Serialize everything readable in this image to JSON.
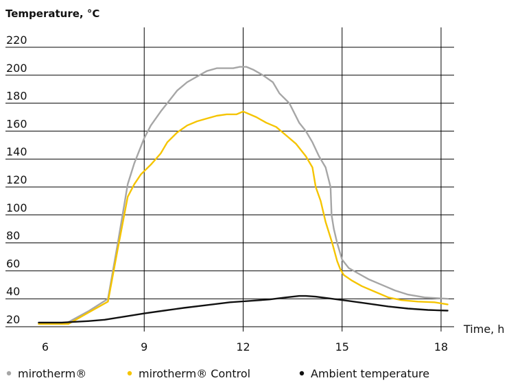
{
  "chart_data": {
    "type": "line",
    "ylabel": "Temperature, °C",
    "xlabel": "Time, h",
    "xlim": [
      5.8,
      18.3
    ],
    "ylim": [
      20,
      230
    ],
    "x_ticks": [
      "6",
      "9",
      "12",
      "15",
      "18"
    ],
    "x_tick_values": [
      6,
      9,
      12,
      15,
      18
    ],
    "y_ticks": [
      "20",
      "40",
      "60",
      "80",
      "100",
      "120",
      "140",
      "160",
      "180",
      "200",
      "220"
    ],
    "y_tick_values": [
      20,
      40,
      60,
      80,
      100,
      120,
      140,
      160,
      180,
      200,
      220
    ],
    "grid": "horizontal at y ticks, vertical at x ticks",
    "legend_position": "bottom",
    "series": [
      {
        "name": "mirotherm®",
        "color": "#a6a6a6",
        "x": [
          5.8,
          6.6,
          7.3,
          7.9,
          8.2,
          8.5,
          8.7,
          9.0,
          9.2,
          9.5,
          9.8,
          10.0,
          10.3,
          10.6,
          10.9,
          11.2,
          11.5,
          11.7,
          11.9,
          12.1,
          12.3,
          12.6,
          12.9,
          13.1,
          13.4,
          13.7,
          13.9,
          14.1,
          14.3,
          14.5,
          14.65,
          14.68,
          14.75,
          14.85,
          15.0,
          15.2,
          15.5,
          15.8,
          16.2,
          16.6,
          17.0,
          17.5,
          18.2
        ],
        "y": [
          22,
          22,
          31,
          40,
          80,
          122,
          137,
          155,
          164,
          174,
          183,
          189,
          195,
          199,
          203,
          205,
          205,
          205,
          206,
          206,
          204,
          200,
          195,
          187,
          180,
          166,
          160,
          152,
          142,
          134,
          120,
          100,
          90,
          80,
          68,
          62,
          58,
          54,
          50,
          46,
          43,
          41,
          40
        ]
      },
      {
        "name": "mirotherm® Control",
        "color": "#f5c400",
        "x": [
          5.8,
          6.7,
          7.3,
          7.9,
          8.2,
          8.5,
          8.7,
          8.9,
          9.2,
          9.5,
          9.7,
          10.0,
          10.3,
          10.6,
          10.9,
          11.2,
          11.5,
          11.8,
          12.0,
          12.2,
          12.4,
          12.7,
          13.0,
          13.3,
          13.6,
          13.9,
          14.1,
          14.2,
          14.35,
          14.5,
          14.7,
          14.85,
          14.95,
          15.05,
          15.3,
          15.6,
          16.0,
          16.4,
          16.8,
          17.3,
          17.8,
          18.2
        ],
        "y": [
          22,
          22,
          30,
          38,
          76,
          113,
          122,
          129,
          136,
          144,
          152,
          159,
          164,
          167,
          169,
          171,
          172,
          172,
          174,
          172,
          170,
          166,
          163,
          157,
          151,
          142,
          134,
          120,
          110,
          95,
          80,
          67,
          61,
          57,
          53,
          49,
          45,
          41,
          39,
          38,
          37.5,
          36
        ]
      },
      {
        "name": "Ambient temperature",
        "color": "#111111",
        "x": [
          5.8,
          6.5,
          7.3,
          7.8,
          8.6,
          9.0,
          9.6,
          10.2,
          10.9,
          11.6,
          12.2,
          12.8,
          13.3,
          13.7,
          13.9,
          14.2,
          14.7,
          15.2,
          15.8,
          16.4,
          17.0,
          17.6,
          18.2
        ],
        "y": [
          23,
          23,
          24,
          25,
          28,
          29.5,
          31.5,
          33.5,
          35.5,
          37.5,
          38.5,
          39.5,
          41,
          42,
          42,
          41.5,
          40,
          38.5,
          36.5,
          34.5,
          33,
          32,
          31.5
        ]
      }
    ]
  }
}
